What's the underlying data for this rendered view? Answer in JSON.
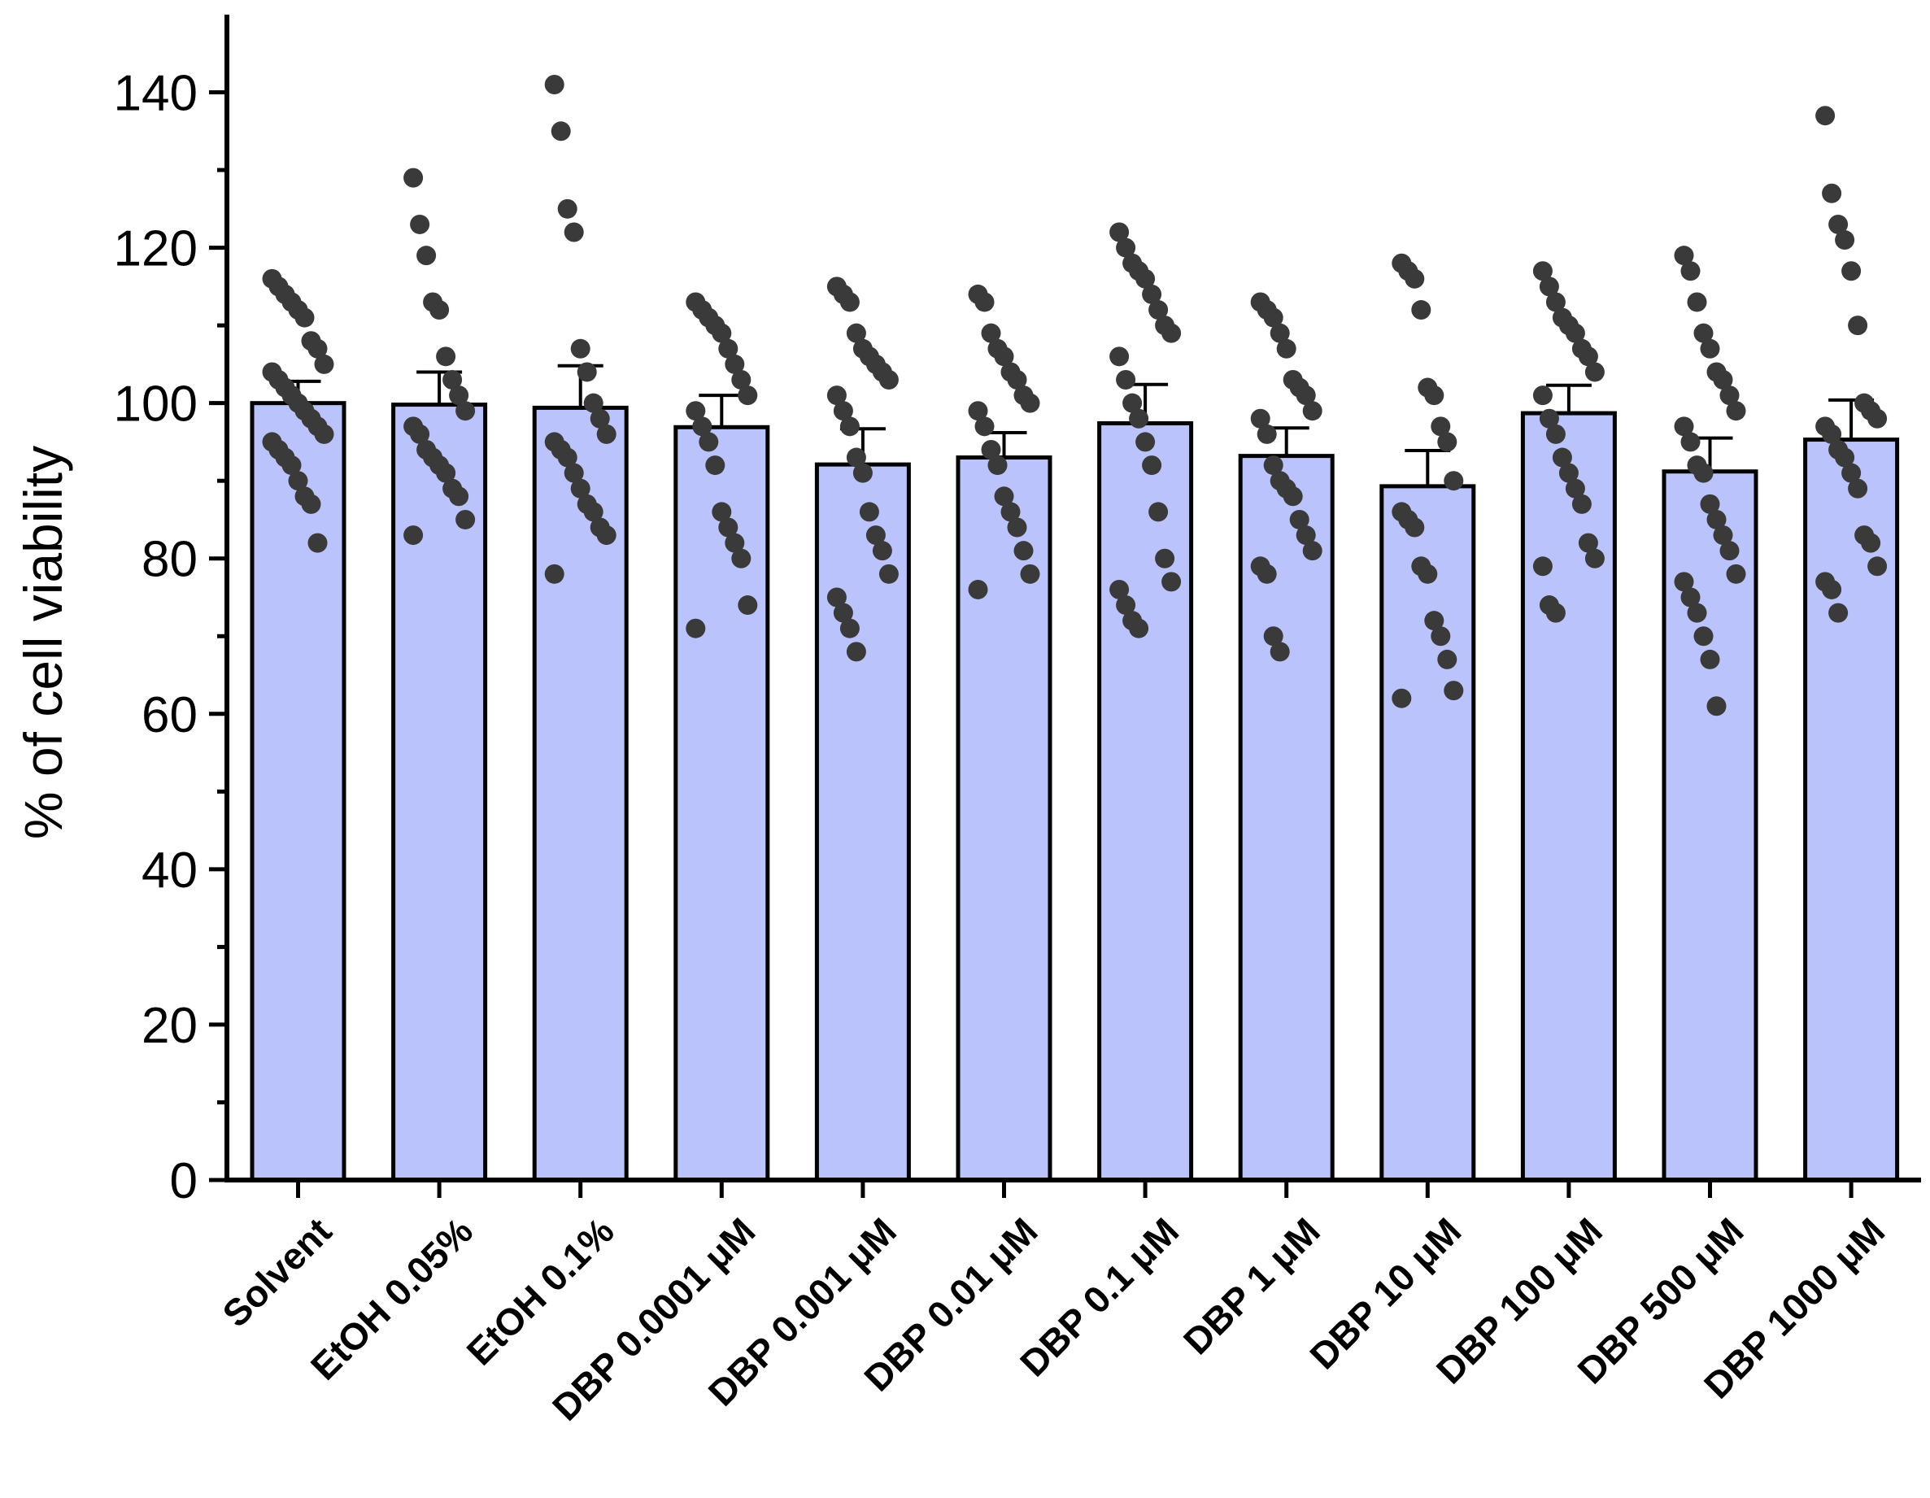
{
  "chart_data": {
    "type": "bar",
    "ylabel": "% of cell viability",
    "xlabel": "",
    "ylim": [
      0,
      150
    ],
    "yticks": [
      0,
      20,
      40,
      60,
      80,
      100,
      120,
      140
    ],
    "categories": [
      "Solvent",
      "EtOH 0.05%",
      "EtOH 0.1%",
      "DBP 0.0001 μM",
      "DBP 0.001 μM",
      "DBP 0.01 μM",
      "DBP 0.1 μM",
      "DBP 1 μM",
      "DBP 10 μM",
      "DBP 100 μM",
      "DBP 500 μM",
      "DBP 1000 μM"
    ],
    "values": [
      100.0,
      99.8,
      99.4,
      96.9,
      92.1,
      93.0,
      97.4,
      93.2,
      89.3,
      98.7,
      91.2,
      95.3
    ],
    "error_upper": [
      102.8,
      104.0,
      104.8,
      101.0,
      96.7,
      96.2,
      102.4,
      96.8,
      93.9,
      102.3,
      95.5,
      100.4
    ],
    "points": [
      [
        116,
        115,
        114,
        113,
        112,
        111,
        108,
        107,
        105,
        104,
        103,
        102,
        101,
        100,
        99,
        98,
        97,
        96,
        95,
        94,
        93,
        92,
        90,
        88,
        87,
        82
      ],
      [
        129,
        123,
        119,
        113,
        112,
        106,
        103,
        101,
        99,
        97,
        96,
        94,
        93,
        92,
        91,
        89,
        88,
        85,
        83
      ],
      [
        141,
        135,
        125,
        122,
        107,
        104,
        100,
        98,
        96,
        95,
        94,
        93,
        91,
        89,
        87,
        86,
        84,
        83,
        78
      ],
      [
        113,
        112,
        111,
        110,
        109,
        107,
        105,
        103,
        101,
        99,
        97,
        95,
        92,
        86,
        84,
        82,
        80,
        74,
        71
      ],
      [
        115,
        114,
        113,
        109,
        107,
        106,
        105,
        104,
        103,
        101,
        99,
        97,
        93,
        91,
        86,
        83,
        81,
        78,
        75,
        73,
        71,
        68
      ],
      [
        114,
        113,
        109,
        107,
        106,
        104,
        103,
        101,
        100,
        99,
        97,
        94,
        92,
        88,
        86,
        84,
        81,
        78,
        76
      ],
      [
        122,
        120,
        118,
        117,
        116,
        114,
        112,
        110,
        109,
        106,
        103,
        100,
        98,
        95,
        92,
        86,
        80,
        77,
        76,
        74,
        72,
        71
      ],
      [
        113,
        112,
        111,
        109,
        107,
        103,
        102,
        101,
        99,
        98,
        96,
        92,
        90,
        89,
        88,
        85,
        83,
        81,
        79,
        78,
        70,
        68
      ],
      [
        118,
        117,
        116,
        112,
        102,
        101,
        97,
        95,
        90,
        86,
        85,
        84,
        79,
        78,
        72,
        70,
        67,
        63,
        62
      ],
      [
        117,
        115,
        113,
        111,
        110,
        109,
        107,
        106,
        104,
        101,
        98,
        96,
        93,
        91,
        89,
        87,
        82,
        80,
        79,
        74,
        73
      ],
      [
        119,
        117,
        113,
        109,
        107,
        104,
        103,
        101,
        99,
        97,
        95,
        92,
        91,
        87,
        85,
        83,
        81,
        78,
        77,
        75,
        73,
        70,
        67,
        61
      ],
      [
        137,
        127,
        123,
        121,
        117,
        110,
        100,
        99,
        98,
        97,
        96,
        94,
        93,
        91,
        89,
        83,
        82,
        79,
        77,
        76,
        73
      ]
    ],
    "colors": {
      "bar": "#bbc3fc",
      "point": "#3a3a3a",
      "axis": "#000000"
    },
    "grid": false,
    "legend": "none"
  }
}
